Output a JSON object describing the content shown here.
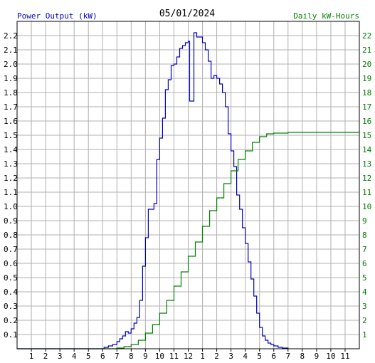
{
  "chart_data": {
    "type": "line",
    "title": "05/01/2024",
    "left_axis_label": "Power Output (kW)",
    "right_axis_label": "Daily kW-Hours",
    "colors": {
      "power": "#0000c0",
      "energy": "#008000",
      "grid": "#b0b0b0",
      "frame": "#000000"
    },
    "x_ticks": [
      "1",
      "2",
      "3",
      "4",
      "5",
      "6",
      "7",
      "8",
      "9",
      "10",
      "11",
      "12",
      "1",
      "2",
      "3",
      "4",
      "5",
      "6",
      "7",
      "8",
      "9",
      "10",
      "11"
    ],
    "xlim_hours": [
      0,
      24
    ],
    "left_ticks": [
      "0.1",
      "0.2",
      "0.3",
      "0.4",
      "0.5",
      "0.6",
      "0.7",
      "0.8",
      "0.9",
      "1.0",
      "1.1",
      "1.2",
      "1.3",
      "1.4",
      "1.5",
      "1.6",
      "1.7",
      "1.8",
      "1.9",
      "2.0",
      "2.1",
      "2.2"
    ],
    "left_ylim": [
      0,
      2.3
    ],
    "right_ticks": [
      "1",
      "2",
      "3",
      "4",
      "5",
      "6",
      "7",
      "8",
      "9",
      "10",
      "11",
      "12",
      "13",
      "14",
      "15",
      "16",
      "17",
      "18",
      "19",
      "20",
      "21",
      "22"
    ],
    "right_ylim": [
      0,
      23
    ],
    "grid": true,
    "series": [
      {
        "key": "power",
        "axis": "left",
        "points": [
          [
            0,
            0
          ],
          [
            5.9,
            0
          ],
          [
            6.1,
            0.01
          ],
          [
            6.4,
            0.02
          ],
          [
            6.7,
            0.03
          ],
          [
            7.0,
            0.05
          ],
          [
            7.2,
            0.07
          ],
          [
            7.4,
            0.09
          ],
          [
            7.6,
            0.12
          ],
          [
            7.8,
            0.11
          ],
          [
            8.0,
            0.14
          ],
          [
            8.2,
            0.18
          ],
          [
            8.4,
            0.22
          ],
          [
            8.6,
            0.34
          ],
          [
            8.8,
            0.58
          ],
          [
            9.0,
            0.78
          ],
          [
            9.2,
            0.98
          ],
          [
            9.4,
            0.98
          ],
          [
            9.6,
            1.02
          ],
          [
            9.8,
            1.33
          ],
          [
            10.0,
            1.48
          ],
          [
            10.2,
            1.62
          ],
          [
            10.4,
            1.82
          ],
          [
            10.6,
            1.89
          ],
          [
            10.8,
            1.99
          ],
          [
            11.0,
            2.0
          ],
          [
            11.2,
            2.05
          ],
          [
            11.4,
            2.11
          ],
          [
            11.6,
            2.13
          ],
          [
            11.8,
            2.15
          ],
          [
            12.0,
            2.16
          ],
          [
            12.1,
            1.74
          ],
          [
            12.3,
            1.74
          ],
          [
            12.4,
            2.22
          ],
          [
            12.6,
            2.19
          ],
          [
            12.8,
            2.19
          ],
          [
            13.0,
            2.15
          ],
          [
            13.2,
            2.1
          ],
          [
            13.4,
            2.02
          ],
          [
            13.6,
            1.9
          ],
          [
            13.8,
            1.92
          ],
          [
            14.0,
            1.9
          ],
          [
            14.2,
            1.86
          ],
          [
            14.4,
            1.8
          ],
          [
            14.6,
            1.7
          ],
          [
            14.8,
            1.51
          ],
          [
            15.0,
            1.39
          ],
          [
            15.2,
            1.28
          ],
          [
            15.4,
            1.08
          ],
          [
            15.6,
            0.98
          ],
          [
            15.8,
            0.85
          ],
          [
            16.0,
            0.74
          ],
          [
            16.2,
            0.61
          ],
          [
            16.4,
            0.49
          ],
          [
            16.6,
            0.37
          ],
          [
            16.8,
            0.25
          ],
          [
            17.0,
            0.15
          ],
          [
            17.2,
            0.09
          ],
          [
            17.4,
            0.06
          ],
          [
            17.6,
            0.04
          ],
          [
            17.8,
            0.03
          ],
          [
            18.0,
            0.02
          ],
          [
            18.3,
            0.01
          ],
          [
            18.6,
            0.005
          ],
          [
            19.0,
            0
          ]
        ]
      },
      {
        "key": "energy",
        "axis": "right",
        "points": [
          [
            0,
            0
          ],
          [
            6.5,
            0
          ],
          [
            7.0,
            0.05
          ],
          [
            7.5,
            0.15
          ],
          [
            8.0,
            0.3
          ],
          [
            8.5,
            0.6
          ],
          [
            9.0,
            1.1
          ],
          [
            9.5,
            1.7
          ],
          [
            10.0,
            2.5
          ],
          [
            10.5,
            3.4
          ],
          [
            11.0,
            4.4
          ],
          [
            11.5,
            5.4
          ],
          [
            12.0,
            6.5
          ],
          [
            12.5,
            7.5
          ],
          [
            13.0,
            8.6
          ],
          [
            13.5,
            9.7
          ],
          [
            14.0,
            10.6
          ],
          [
            14.5,
            11.6
          ],
          [
            15.0,
            12.5
          ],
          [
            15.5,
            13.3
          ],
          [
            16.0,
            13.9
          ],
          [
            16.5,
            14.5
          ],
          [
            17.0,
            14.9
          ],
          [
            17.5,
            15.1
          ],
          [
            18.0,
            15.15
          ],
          [
            19.0,
            15.2
          ],
          [
            24.0,
            15.2
          ]
        ]
      }
    ]
  }
}
